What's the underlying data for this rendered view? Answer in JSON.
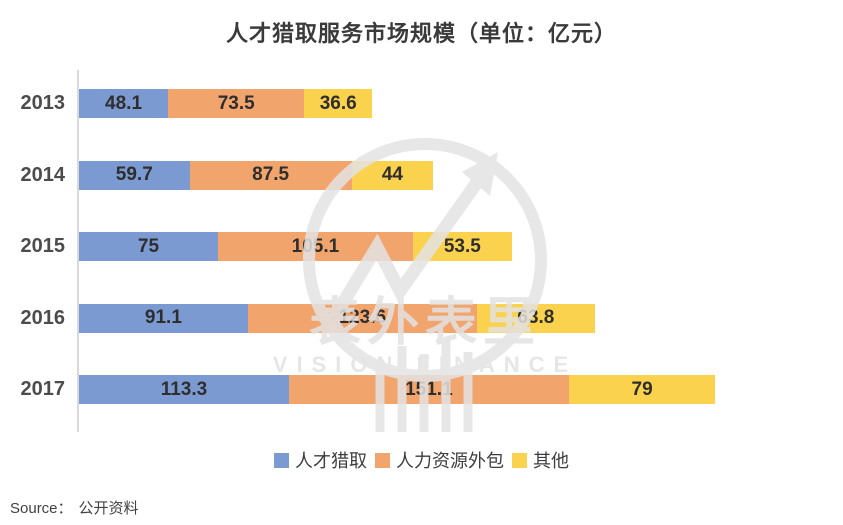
{
  "title": "人才猎取服务市场规模（单位：亿元）",
  "chart_data": {
    "type": "bar",
    "orientation": "horizontal",
    "stacked": true,
    "title": "人才猎取服务市场规模（单位：亿元）",
    "unit": "亿元",
    "categories": [
      "2013",
      "2014",
      "2015",
      "2016",
      "2017"
    ],
    "series": [
      {
        "name": "人才猎取",
        "color": "#7c9ad2",
        "values": [
          48.1,
          59.7,
          75,
          91.1,
          113.3
        ]
      },
      {
        "name": "人力资源外包",
        "color": "#f2a46d",
        "values": [
          73.5,
          87.5,
          105.1,
          123.6,
          151.1
        ]
      },
      {
        "name": "其他",
        "color": "#fbd24e",
        "values": [
          36.6,
          44,
          53.5,
          63.8,
          79
        ]
      }
    ],
    "value_labels": "inside-center",
    "legend_position": "bottom",
    "axis_line_color": "#d9d9d9",
    "label_color": "#2e2e2e"
  },
  "watermark": {
    "cn": "表外表里",
    "en": "VISION FINANCE"
  },
  "source": {
    "label": "Source：",
    "text": "公开资料"
  }
}
